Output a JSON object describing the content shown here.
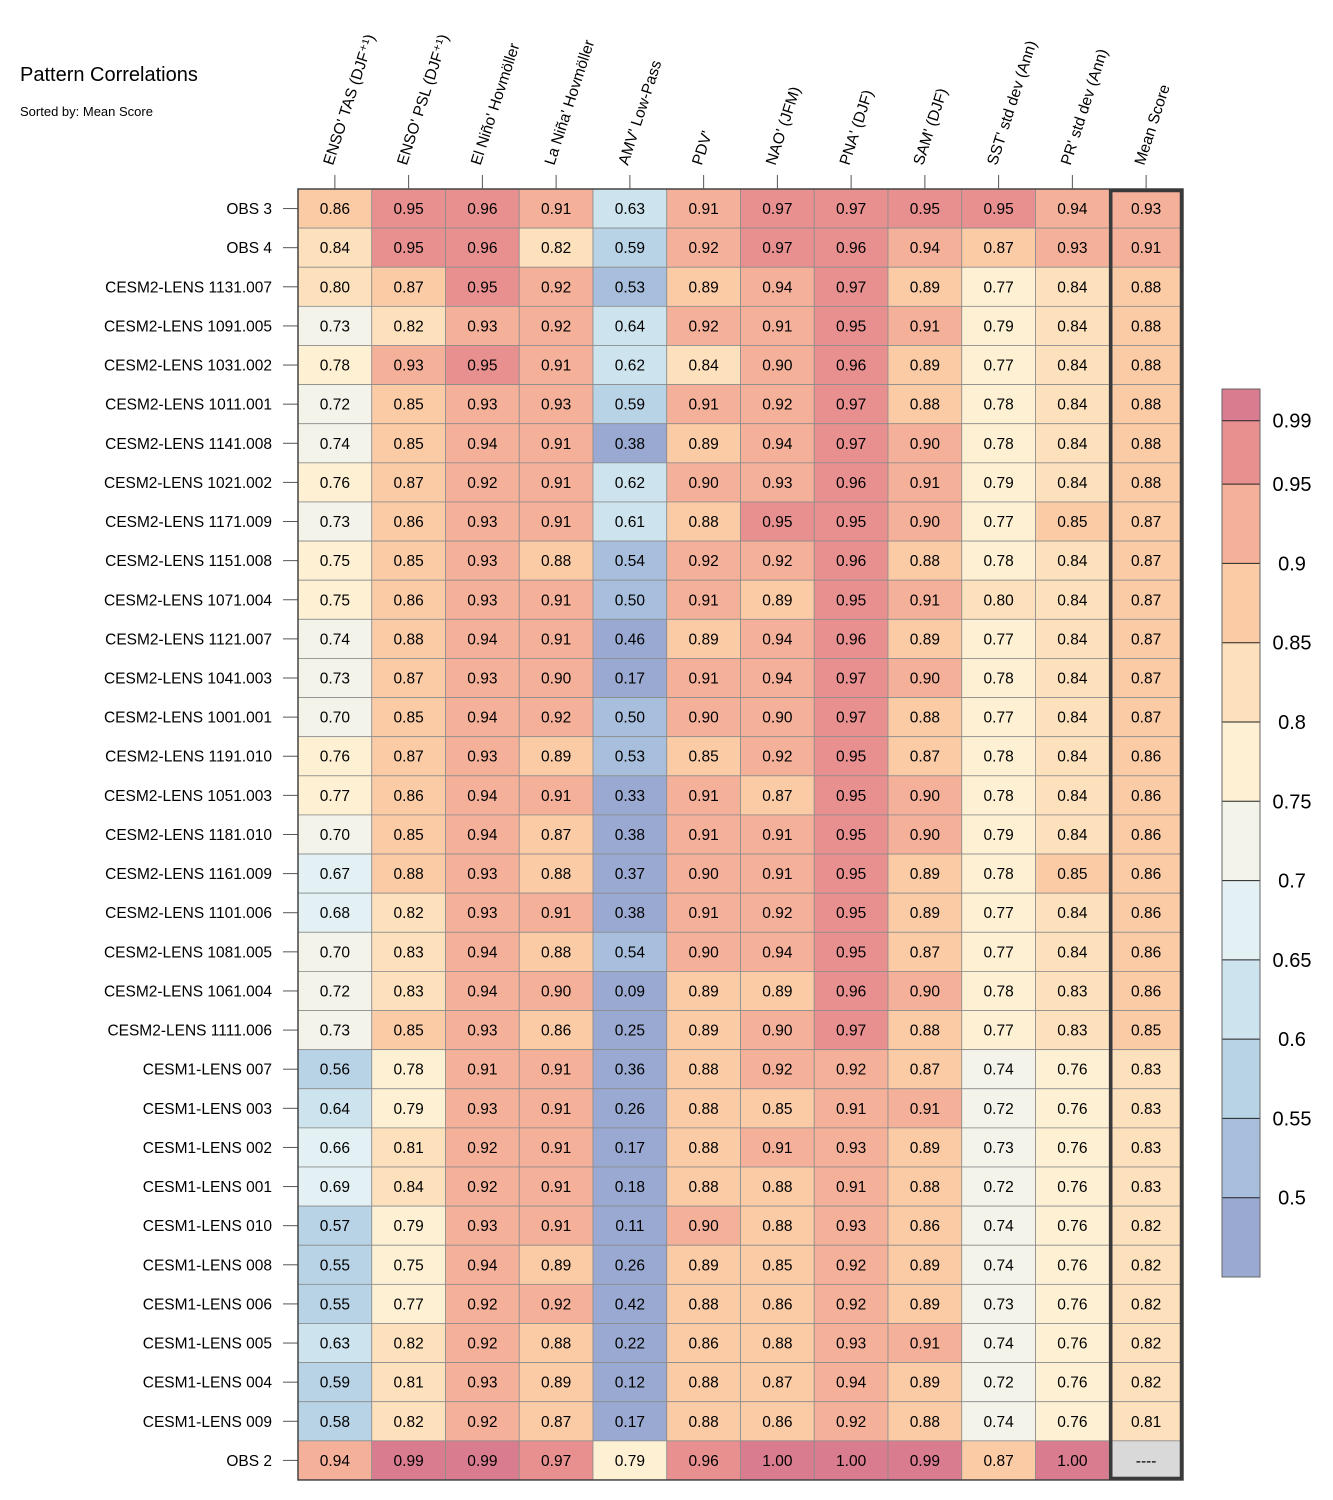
{
  "chart_data": {
    "type": "heatmap",
    "title": "Pattern Correlations",
    "subtitle": "Sorted by: Mean Score",
    "columns": [
      "ENSO' TAS (DJF⁺¹)",
      "ENSO' PSL (DJF⁺¹)",
      "El Niño' Hovmöller",
      "La Niña' Hovmöller",
      "AMV' Low-Pass",
      "PDV'",
      "NAO' (JFM)",
      "PNA' (DJF)",
      "SAM' (DJF)",
      "SST' std dev (Ann)",
      "PR' std dev (Ann)",
      "Mean Score"
    ],
    "rows": [
      {
        "label": "OBS 3",
        "values": [
          "0.86",
          "0.95",
          "0.96",
          "0.91",
          "0.63",
          "0.91",
          "0.97",
          "0.97",
          "0.95",
          "0.95",
          "0.94",
          "0.93"
        ]
      },
      {
        "label": "OBS 4",
        "values": [
          "0.84",
          "0.95",
          "0.96",
          "0.82",
          "0.59",
          "0.92",
          "0.97",
          "0.96",
          "0.94",
          "0.87",
          "0.93",
          "0.91"
        ]
      },
      {
        "label": "CESM2-LENS 1131.007",
        "values": [
          "0.80",
          "0.87",
          "0.95",
          "0.92",
          "0.53",
          "0.89",
          "0.94",
          "0.97",
          "0.89",
          "0.77",
          "0.84",
          "0.88"
        ]
      },
      {
        "label": "CESM2-LENS 1091.005",
        "values": [
          "0.73",
          "0.82",
          "0.93",
          "0.92",
          "0.64",
          "0.92",
          "0.91",
          "0.95",
          "0.91",
          "0.79",
          "0.84",
          "0.88"
        ]
      },
      {
        "label": "CESM2-LENS 1031.002",
        "values": [
          "0.78",
          "0.93",
          "0.95",
          "0.91",
          "0.62",
          "0.84",
          "0.90",
          "0.96",
          "0.89",
          "0.77",
          "0.84",
          "0.88"
        ]
      },
      {
        "label": "CESM2-LENS 1011.001",
        "values": [
          "0.72",
          "0.85",
          "0.93",
          "0.93",
          "0.59",
          "0.91",
          "0.92",
          "0.97",
          "0.88",
          "0.78",
          "0.84",
          "0.88"
        ]
      },
      {
        "label": "CESM2-LENS 1141.008",
        "values": [
          "0.74",
          "0.85",
          "0.94",
          "0.91",
          "0.38",
          "0.89",
          "0.94",
          "0.97",
          "0.90",
          "0.78",
          "0.84",
          "0.88"
        ]
      },
      {
        "label": "CESM2-LENS 1021.002",
        "values": [
          "0.76",
          "0.87",
          "0.92",
          "0.91",
          "0.62",
          "0.90",
          "0.93",
          "0.96",
          "0.91",
          "0.79",
          "0.84",
          "0.88"
        ]
      },
      {
        "label": "CESM2-LENS 1171.009",
        "values": [
          "0.73",
          "0.86",
          "0.93",
          "0.91",
          "0.61",
          "0.88",
          "0.95",
          "0.95",
          "0.90",
          "0.77",
          "0.85",
          "0.87"
        ]
      },
      {
        "label": "CESM2-LENS 1151.008",
        "values": [
          "0.75",
          "0.85",
          "0.93",
          "0.88",
          "0.54",
          "0.92",
          "0.92",
          "0.96",
          "0.88",
          "0.78",
          "0.84",
          "0.87"
        ]
      },
      {
        "label": "CESM2-LENS 1071.004",
        "values": [
          "0.75",
          "0.86",
          "0.93",
          "0.91",
          "0.50",
          "0.91",
          "0.89",
          "0.95",
          "0.91",
          "0.80",
          "0.84",
          "0.87"
        ]
      },
      {
        "label": "CESM2-LENS 1121.007",
        "values": [
          "0.74",
          "0.88",
          "0.94",
          "0.91",
          "0.46",
          "0.89",
          "0.94",
          "0.96",
          "0.89",
          "0.77",
          "0.84",
          "0.87"
        ]
      },
      {
        "label": "CESM2-LENS 1041.003",
        "values": [
          "0.73",
          "0.87",
          "0.93",
          "0.90",
          "0.17",
          "0.91",
          "0.94",
          "0.97",
          "0.90",
          "0.78",
          "0.84",
          "0.87"
        ]
      },
      {
        "label": "CESM2-LENS 1001.001",
        "values": [
          "0.70",
          "0.85",
          "0.94",
          "0.92",
          "0.50",
          "0.90",
          "0.90",
          "0.97",
          "0.88",
          "0.77",
          "0.84",
          "0.87"
        ]
      },
      {
        "label": "CESM2-LENS 1191.010",
        "values": [
          "0.76",
          "0.87",
          "0.93",
          "0.89",
          "0.53",
          "0.85",
          "0.92",
          "0.95",
          "0.87",
          "0.78",
          "0.84",
          "0.86"
        ]
      },
      {
        "label": "CESM2-LENS 1051.003",
        "values": [
          "0.77",
          "0.86",
          "0.94",
          "0.91",
          "0.33",
          "0.91",
          "0.87",
          "0.95",
          "0.90",
          "0.78",
          "0.84",
          "0.86"
        ]
      },
      {
        "label": "CESM2-LENS 1181.010",
        "values": [
          "0.70",
          "0.85",
          "0.94",
          "0.87",
          "0.38",
          "0.91",
          "0.91",
          "0.95",
          "0.90",
          "0.79",
          "0.84",
          "0.86"
        ]
      },
      {
        "label": "CESM2-LENS 1161.009",
        "values": [
          "0.67",
          "0.88",
          "0.93",
          "0.88",
          "0.37",
          "0.90",
          "0.91",
          "0.95",
          "0.89",
          "0.78",
          "0.85",
          "0.86"
        ]
      },
      {
        "label": "CESM2-LENS 1101.006",
        "values": [
          "0.68",
          "0.82",
          "0.93",
          "0.91",
          "0.38",
          "0.91",
          "0.92",
          "0.95",
          "0.89",
          "0.77",
          "0.84",
          "0.86"
        ]
      },
      {
        "label": "CESM2-LENS 1081.005",
        "values": [
          "0.70",
          "0.83",
          "0.94",
          "0.88",
          "0.54",
          "0.90",
          "0.94",
          "0.95",
          "0.87",
          "0.77",
          "0.84",
          "0.86"
        ]
      },
      {
        "label": "CESM2-LENS 1061.004",
        "values": [
          "0.72",
          "0.83",
          "0.94",
          "0.90",
          "0.09",
          "0.89",
          "0.89",
          "0.96",
          "0.90",
          "0.78",
          "0.83",
          "0.86"
        ]
      },
      {
        "label": "CESM2-LENS 1111.006",
        "values": [
          "0.73",
          "0.85",
          "0.93",
          "0.86",
          "0.25",
          "0.89",
          "0.90",
          "0.97",
          "0.88",
          "0.77",
          "0.83",
          "0.85"
        ]
      },
      {
        "label": "CESM1-LENS 007",
        "values": [
          "0.56",
          "0.78",
          "0.91",
          "0.91",
          "0.36",
          "0.88",
          "0.92",
          "0.92",
          "0.87",
          "0.74",
          "0.76",
          "0.83"
        ]
      },
      {
        "label": "CESM1-LENS 003",
        "values": [
          "0.64",
          "0.79",
          "0.93",
          "0.91",
          "0.26",
          "0.88",
          "0.85",
          "0.91",
          "0.91",
          "0.72",
          "0.76",
          "0.83"
        ]
      },
      {
        "label": "CESM1-LENS 002",
        "values": [
          "0.66",
          "0.81",
          "0.92",
          "0.91",
          "0.17",
          "0.88",
          "0.91",
          "0.93",
          "0.89",
          "0.73",
          "0.76",
          "0.83"
        ]
      },
      {
        "label": "CESM1-LENS 001",
        "values": [
          "0.69",
          "0.84",
          "0.92",
          "0.91",
          "0.18",
          "0.88",
          "0.88",
          "0.91",
          "0.88",
          "0.72",
          "0.76",
          "0.83"
        ]
      },
      {
        "label": "CESM1-LENS 010",
        "values": [
          "0.57",
          "0.79",
          "0.93",
          "0.91",
          "0.11",
          "0.90",
          "0.88",
          "0.93",
          "0.86",
          "0.74",
          "0.76",
          "0.82"
        ]
      },
      {
        "label": "CESM1-LENS 008",
        "values": [
          "0.55",
          "0.75",
          "0.94",
          "0.89",
          "0.26",
          "0.89",
          "0.85",
          "0.92",
          "0.89",
          "0.74",
          "0.76",
          "0.82"
        ]
      },
      {
        "label": "CESM1-LENS 006",
        "values": [
          "0.55",
          "0.77",
          "0.92",
          "0.92",
          "0.42",
          "0.88",
          "0.86",
          "0.92",
          "0.89",
          "0.73",
          "0.76",
          "0.82"
        ]
      },
      {
        "label": "CESM1-LENS 005",
        "values": [
          "0.63",
          "0.82",
          "0.92",
          "0.88",
          "0.22",
          "0.86",
          "0.88",
          "0.93",
          "0.91",
          "0.74",
          "0.76",
          "0.82"
        ]
      },
      {
        "label": "CESM1-LENS 004",
        "values": [
          "0.59",
          "0.81",
          "0.93",
          "0.89",
          "0.12",
          "0.88",
          "0.87",
          "0.94",
          "0.89",
          "0.72",
          "0.76",
          "0.82"
        ]
      },
      {
        "label": "CESM1-LENS 009",
        "values": [
          "0.58",
          "0.82",
          "0.92",
          "0.87",
          "0.17",
          "0.88",
          "0.86",
          "0.92",
          "0.88",
          "0.74",
          "0.76",
          "0.81"
        ]
      },
      {
        "label": "OBS 2",
        "values": [
          "0.94",
          "0.99",
          "0.99",
          "0.97",
          "0.79",
          "0.96",
          "1.00",
          "1.00",
          "0.99",
          "0.87",
          "1.00",
          "----"
        ]
      }
    ],
    "colorbar": {
      "tick_labels": [
        "0.99",
        "0.95",
        "0.9",
        "0.85",
        "0.8",
        "0.75",
        "0.7",
        "0.65",
        "0.6",
        "0.55",
        "0.5"
      ],
      "bin_edges": [
        0.45,
        0.5,
        0.55,
        0.6,
        0.65,
        0.7,
        0.75,
        0.8,
        0.85,
        0.9,
        0.95,
        0.99,
        1.01
      ],
      "colors": [
        "#9aa9d1",
        "#a7bedc",
        "#b8d2e6",
        "#cde3ed",
        "#e3f1f4",
        "#f3f3ea",
        "#fdf0d3",
        "#fde0bc",
        "#fbcba6",
        "#f5b09a",
        "#e89090",
        "#d97c8f"
      ],
      "missing_color": "#d9d9d9"
    }
  }
}
